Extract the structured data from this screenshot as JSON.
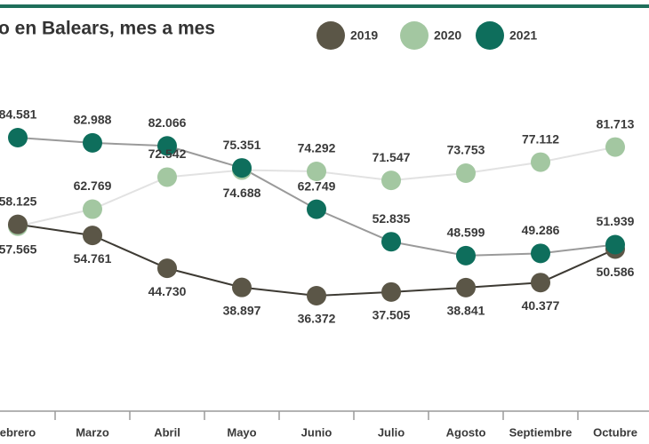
{
  "chart_data": {
    "type": "line",
    "title": "o en Balears, mes a mes",
    "categories": [
      "ebrero",
      "Marzo",
      "Abril",
      "Mayo",
      "Junio",
      "Julio",
      "Agosto",
      "Septiembre",
      "Octubre"
    ],
    "series": [
      {
        "name": "2019",
        "color": "#5b5647",
        "values": [
          58125,
          54761,
          44730,
          38897,
          36372,
          37505,
          38841,
          40377,
          50586
        ],
        "value_labels": [
          "58.125",
          "54.761",
          "44.730",
          "38.897",
          "36.372",
          "37.505",
          "38.841",
          "40.377",
          "50.586"
        ]
      },
      {
        "name": "2020",
        "color": "#a3c7a1",
        "values": [
          57565,
          62769,
          72542,
          74688,
          74292,
          71547,
          73753,
          77112,
          81713
        ],
        "value_labels": [
          "57.565",
          "62.769",
          "72.542",
          "74.688",
          "74.292",
          "71.547",
          "73.753",
          "77.112",
          "81.713"
        ]
      },
      {
        "name": "2021",
        "color": "#0e6e5c",
        "values": [
          84581,
          82988,
          82066,
          75351,
          62749,
          52835,
          48599,
          49286,
          51939
        ],
        "value_labels": [
          "84.581",
          "82.988",
          "82.066",
          "75.351",
          "62.749",
          "52.835",
          "48.599",
          "49.286",
          "51.939"
        ]
      }
    ]
  }
}
